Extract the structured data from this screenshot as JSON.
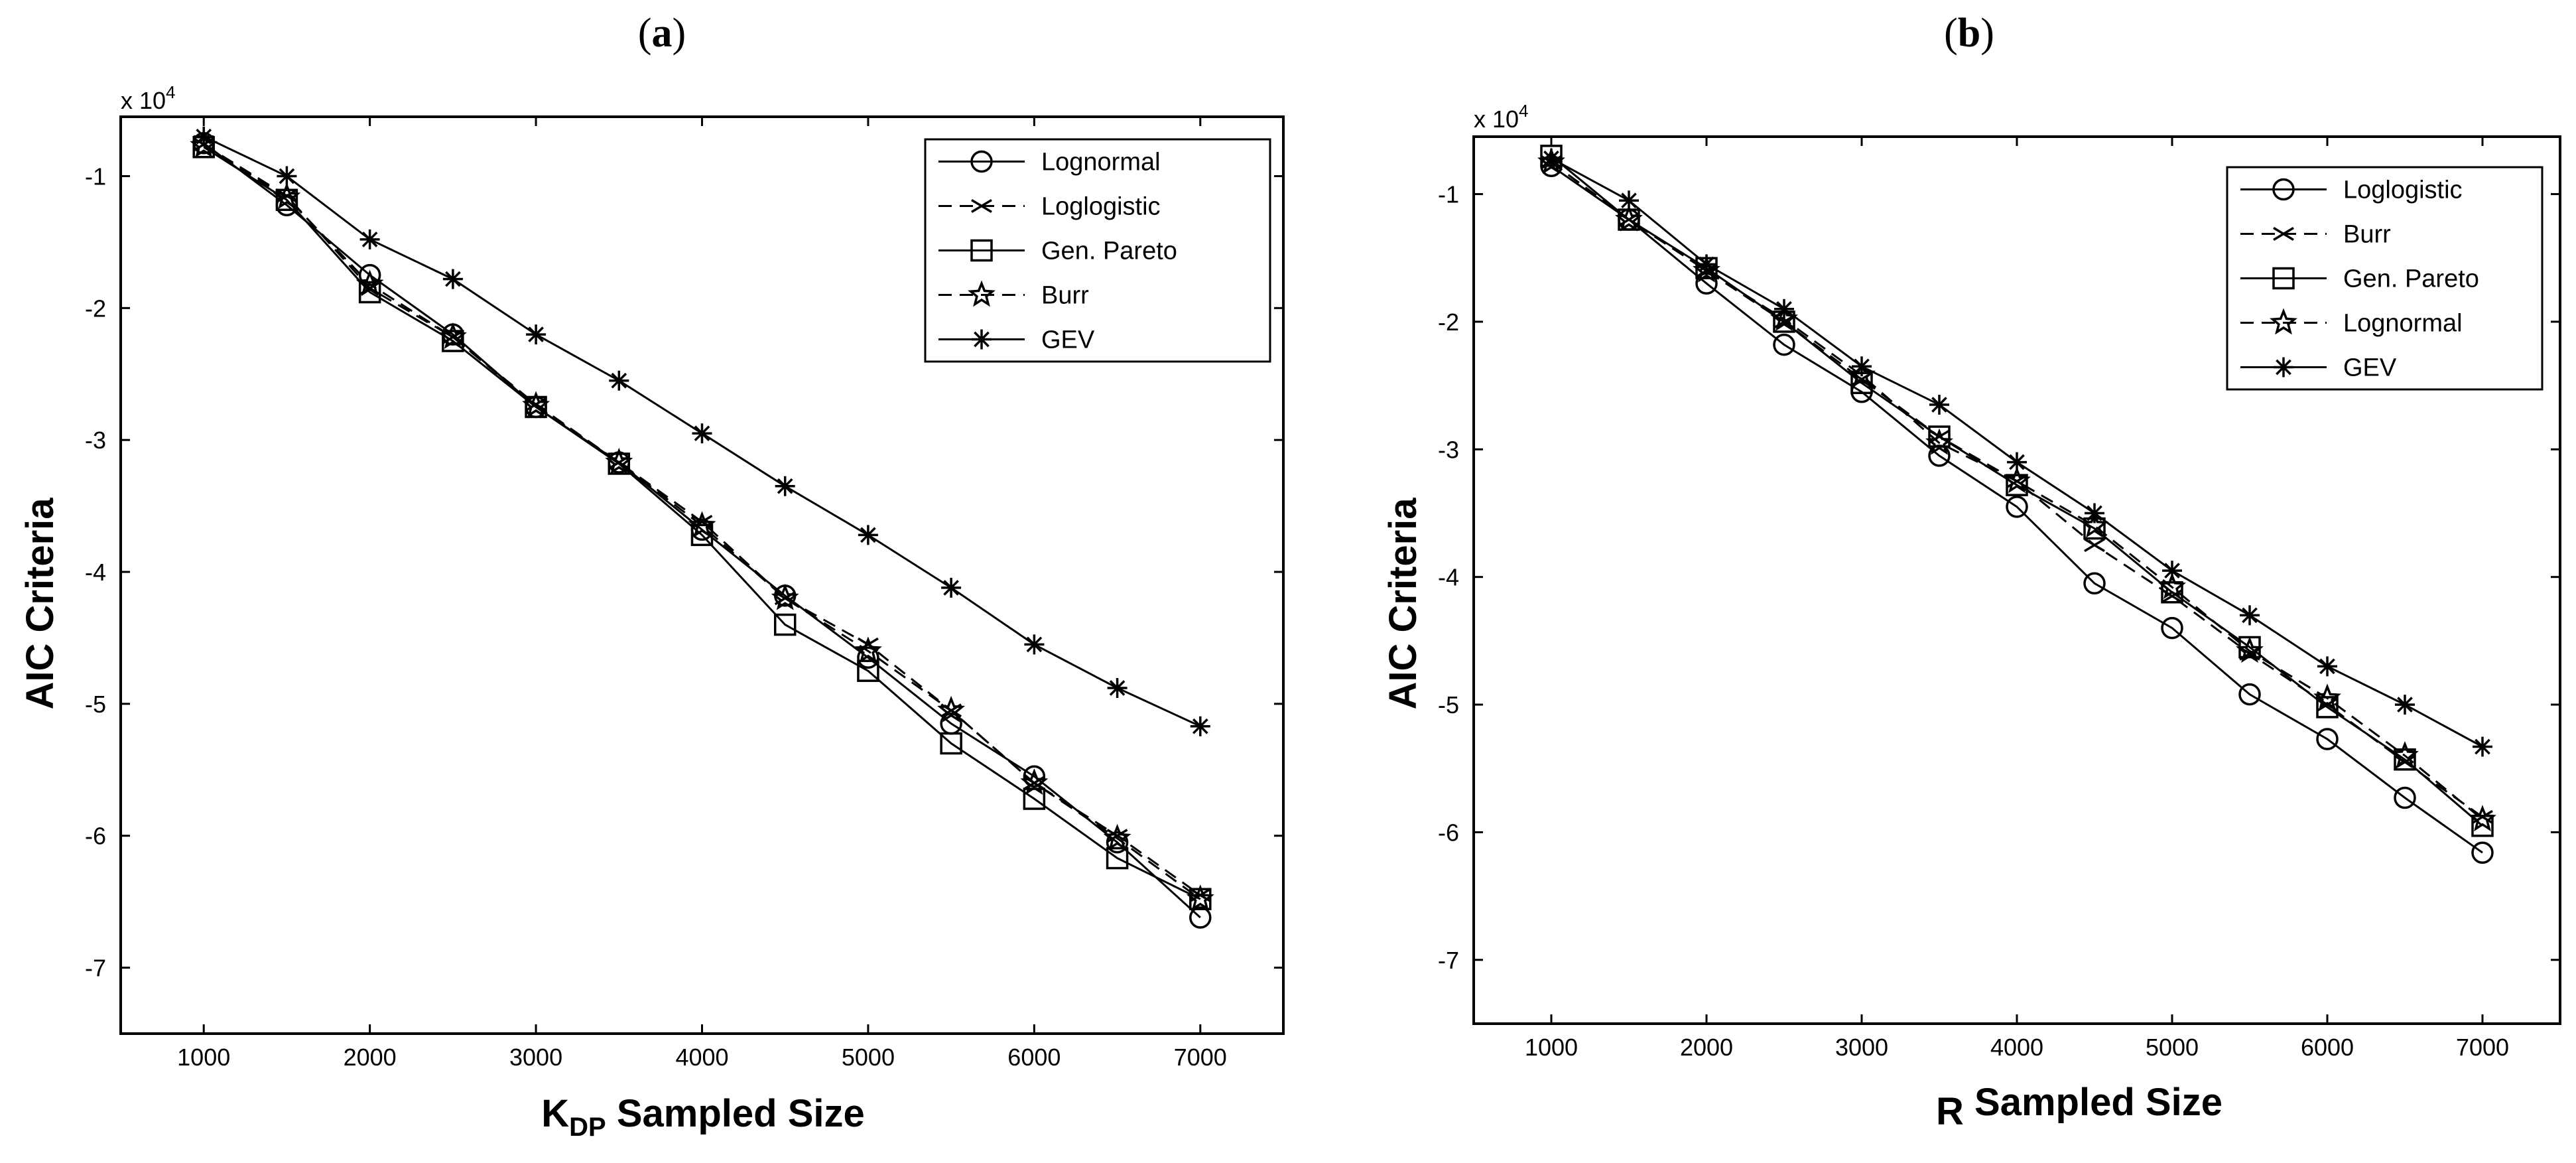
{
  "chart_data": [
    {
      "type": "line",
      "panel_label_parts": [
        "(",
        "a",
        ")"
      ],
      "exponent_label": "x 10",
      "exponent_power": "4",
      "xlabel_main": "K",
      "xlabel_sub": "DP",
      "xlabel_rest": " Sampled Size",
      "ylabel": "AIC Criteria",
      "xlim": [
        500,
        7500
      ],
      "ylim": [
        -7.5,
        -0.55
      ],
      "xticks": [
        1000,
        2000,
        3000,
        4000,
        5000,
        6000,
        7000
      ],
      "yticks": [
        -1,
        -2,
        -3,
        -4,
        -5,
        -6,
        -7
      ],
      "legend_position": "top-right",
      "x": [
        1000,
        1500,
        2000,
        2500,
        3000,
        3500,
        4000,
        4500,
        5000,
        5500,
        6000,
        6500,
        7000
      ],
      "series": [
        {
          "name": "Lognormal",
          "marker": "circle",
          "dash": "solid",
          "values": [
            -0.75,
            -1.22,
            -1.75,
            -2.2,
            -2.75,
            -3.17,
            -3.68,
            -4.18,
            -4.65,
            -5.15,
            -5.55,
            -6.05,
            -6.62
          ]
        },
        {
          "name": "Loglogistic",
          "marker": "x",
          "dash": "dashed",
          "values": [
            -0.76,
            -1.15,
            -1.85,
            -2.22,
            -2.73,
            -3.17,
            -3.62,
            -4.2,
            -4.55,
            -5.05,
            -5.6,
            -6.0,
            -6.45
          ]
        },
        {
          "name": "Gen. Pareto",
          "marker": "square",
          "dash": "solid",
          "values": [
            -0.78,
            -1.18,
            -1.88,
            -2.25,
            -2.75,
            -3.18,
            -3.72,
            -4.4,
            -4.75,
            -5.3,
            -5.72,
            -6.17,
            -6.48
          ]
        },
        {
          "name": "Burr",
          "marker": "star",
          "dash": "dashed",
          "values": [
            -0.77,
            -1.16,
            -1.82,
            -2.22,
            -2.74,
            -3.17,
            -3.65,
            -4.2,
            -4.6,
            -5.05,
            -5.6,
            -6.02,
            -6.48
          ]
        },
        {
          "name": "GEV",
          "marker": "asterisk",
          "dash": "solid",
          "values": [
            -0.7,
            -1.0,
            -1.48,
            -1.78,
            -2.2,
            -2.55,
            -2.95,
            -3.35,
            -3.72,
            -4.12,
            -4.55,
            -4.88,
            -5.17
          ]
        }
      ]
    },
    {
      "type": "line",
      "panel_label_parts": [
        "(",
        "b",
        ")"
      ],
      "exponent_label": "x 10",
      "exponent_power": "4",
      "xlabel_main": "R",
      "xlabel_sub": "",
      "xlabel_rest": " Sampled Size",
      "ylabel": "AIC Criteria",
      "xlim": [
        500,
        7500
      ],
      "ylim": [
        -7.5,
        -0.55
      ],
      "xticks": [
        1000,
        2000,
        3000,
        4000,
        5000,
        6000,
        7000
      ],
      "yticks": [
        -1,
        -2,
        -3,
        -4,
        -5,
        -6,
        -7
      ],
      "legend_position": "top-right",
      "x": [
        1000,
        1500,
        2000,
        2500,
        3000,
        3500,
        4000,
        4500,
        5000,
        5500,
        6000,
        6500,
        7000
      ],
      "series": [
        {
          "name": "Loglogistic",
          "marker": "circle",
          "dash": "solid",
          "values": [
            -0.78,
            -1.2,
            -1.7,
            -2.18,
            -2.55,
            -3.05,
            -3.45,
            -4.05,
            -4.4,
            -4.92,
            -5.27,
            -5.73,
            -6.16
          ]
        },
        {
          "name": "Burr",
          "marker": "x",
          "dash": "dashed",
          "values": [
            -0.75,
            -1.2,
            -1.6,
            -2.0,
            -2.45,
            -2.9,
            -3.25,
            -3.75,
            -4.15,
            -4.6,
            -5.0,
            -5.45,
            -5.88
          ]
        },
        {
          "name": "Gen. Pareto",
          "marker": "square",
          "dash": "solid",
          "values": [
            -0.7,
            -1.2,
            -1.58,
            -2.0,
            -2.48,
            -2.9,
            -3.28,
            -3.62,
            -4.12,
            -4.55,
            -5.02,
            -5.43,
            -5.95
          ]
        },
        {
          "name": "Lognormal",
          "marker": "star",
          "dash": "dashed",
          "values": [
            -0.75,
            -1.2,
            -1.6,
            -1.98,
            -2.42,
            -2.95,
            -3.25,
            -3.6,
            -4.08,
            -4.58,
            -4.95,
            -5.4,
            -5.9
          ]
        },
        {
          "name": "GEV",
          "marker": "asterisk",
          "dash": "solid",
          "values": [
            -0.72,
            -1.05,
            -1.55,
            -1.9,
            -2.35,
            -2.65,
            -3.1,
            -3.5,
            -3.95,
            -4.3,
            -4.7,
            -5.0,
            -5.33
          ]
        }
      ]
    }
  ]
}
